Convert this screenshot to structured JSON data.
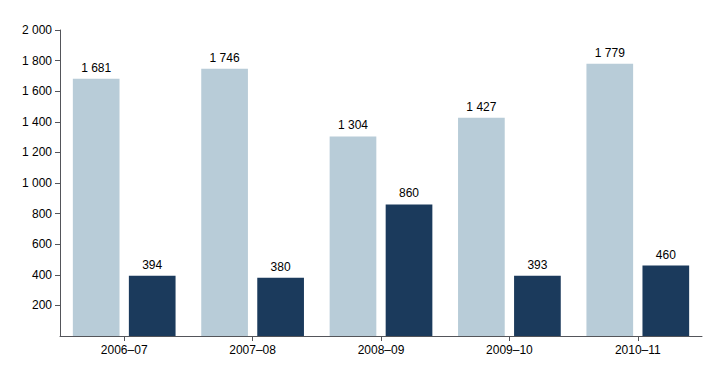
{
  "chart_data": {
    "type": "bar",
    "categories": [
      "2006–07",
      "2007–08",
      "2008–09",
      "2009–10",
      "2010–11"
    ],
    "series": [
      {
        "color": "#b8ccd8",
        "values": [
          1681,
          1746,
          1304,
          1427,
          1779
        ],
        "value_labels": [
          "1 681",
          "1 746",
          "1 304",
          "1 427",
          "1 779"
        ]
      },
      {
        "color": "#1b3a5c",
        "values": [
          394,
          380,
          860,
          393,
          460
        ]
      }
    ],
    "ylim": [
      0,
      2000
    ],
    "yticks": [
      200,
      400,
      600,
      800,
      {
        "value": 1000,
        "label": "1 000"
      },
      {
        "value": 1200,
        "label": "1 200"
      },
      {
        "value": 1400,
        "label": "1 400"
      },
      {
        "value": 1600,
        "label": "1 600"
      },
      {
        "value": 1800,
        "label": "1 800"
      },
      {
        "value": 2000,
        "label": "2 000"
      }
    ],
    "grid": false,
    "data_labels": true
  }
}
